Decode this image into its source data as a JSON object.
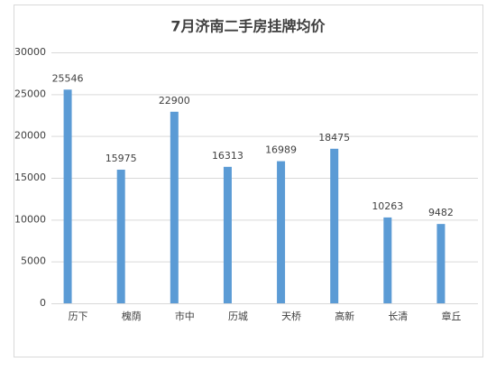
{
  "chart_data": {
    "type": "bar",
    "title": "7月济南二手房挂牌均价",
    "categories": [
      "历下",
      "槐荫",
      "市中",
      "历城",
      "天桥",
      "高新",
      "长清",
      "章丘"
    ],
    "values": [
      25546,
      15975,
      22900,
      16313,
      16989,
      18475,
      10263,
      9482
    ],
    "color": "#5b9bd5",
    "ylim": [
      0,
      30000
    ],
    "yticks": [
      0,
      5000,
      10000,
      15000,
      20000,
      25000,
      30000
    ],
    "grid": true
  }
}
